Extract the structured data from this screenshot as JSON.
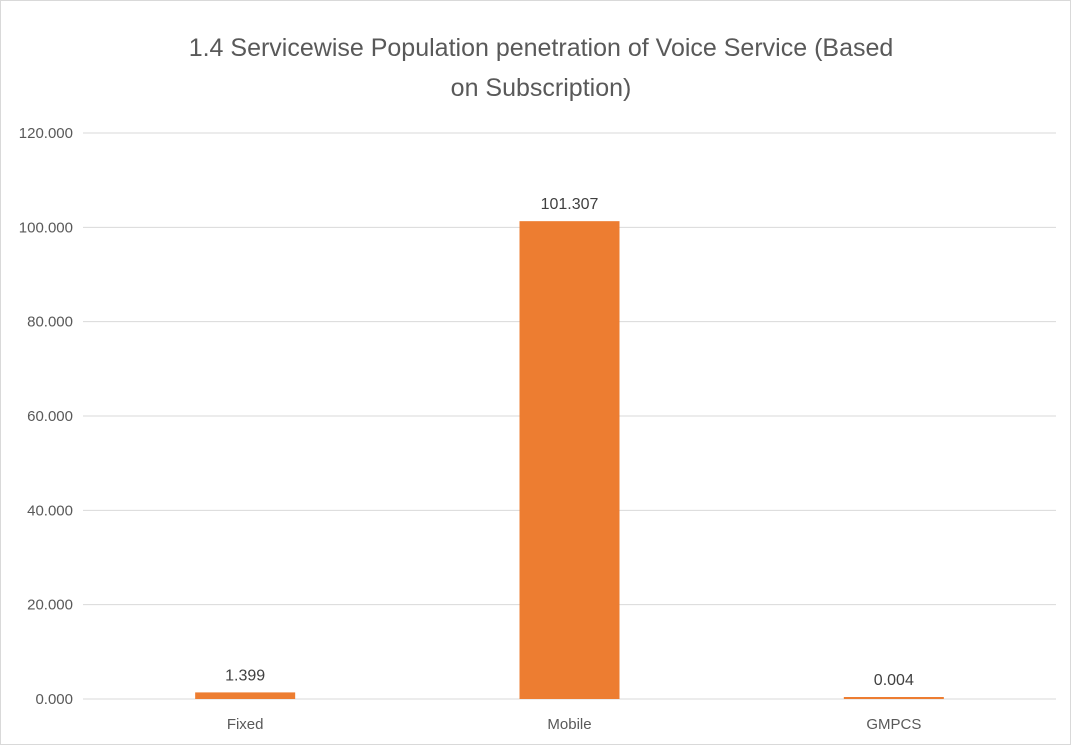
{
  "chart_data": {
    "type": "bar",
    "title_lines": [
      "1.4 Servicewise Population penetration of Voice Service (Based",
      "on Subscription)"
    ],
    "xlabel": "",
    "ylabel": "",
    "categories": [
      "Fixed",
      "Mobile",
      "GMPCS"
    ],
    "values": [
      1.399,
      101.307,
      0.004
    ],
    "data_labels": [
      "1.399",
      "101.307",
      "0.004"
    ],
    "ylim": [
      0,
      120
    ],
    "yticks": [
      0,
      20,
      40,
      60,
      80,
      100,
      120
    ],
    "ytick_labels": [
      "0.000",
      "20.000",
      "40.000",
      "60.000",
      "80.000",
      "100.000",
      "120.000"
    ],
    "grid": true,
    "legend": "none",
    "bar_color": "#ED7D31"
  }
}
